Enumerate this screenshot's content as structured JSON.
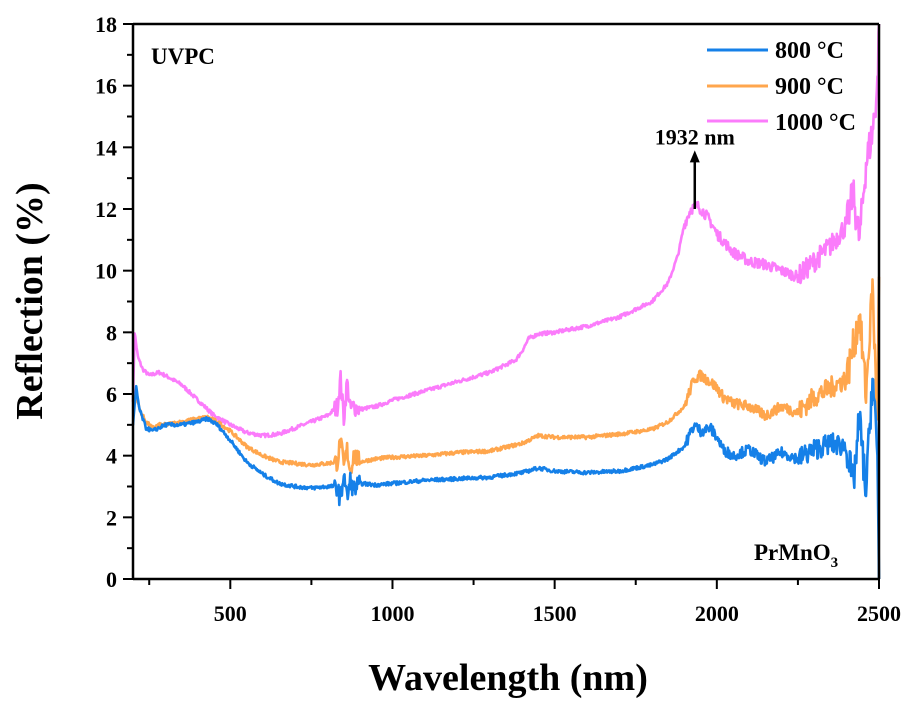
{
  "chart_data": {
    "type": "line",
    "title": "",
    "xlabel": "Wavelength (nm)",
    "ylabel": "Reflection (%)",
    "xlim": [
      200,
      2500
    ],
    "ylim": [
      0,
      18
    ],
    "xticks": [
      500,
      1000,
      1500,
      2000,
      2500
    ],
    "xminor": [
      250,
      750,
      1250,
      1750,
      2250
    ],
    "yticks": [
      0,
      2,
      4,
      6,
      8,
      10,
      12,
      14,
      16,
      18
    ],
    "yminor": [
      1,
      3,
      5,
      7,
      9,
      11,
      13,
      15,
      17
    ],
    "grid": false,
    "legend_position": "top-right",
    "annotations": [
      {
        "id": "sample-label",
        "text": "UVPC",
        "position": "top-left"
      },
      {
        "id": "compound-label",
        "text": "PrMnO",
        "subscript": "3",
        "position": "bottom-right"
      },
      {
        "id": "peak-label",
        "text": "1932 nm",
        "x": 1932,
        "arrow_from_y": 12.0,
        "arrow_to_y": 13.9
      }
    ],
    "series": [
      {
        "name": "800 °C",
        "color": "#1580e8",
        "x": [
          200,
          210,
          220,
          240,
          260,
          280,
          300,
          350,
          400,
          430,
          460,
          500,
          550,
          600,
          650,
          700,
          750,
          800,
          830,
          840,
          850,
          860,
          870,
          880,
          900,
          950,
          1000,
          1100,
          1200,
          1300,
          1400,
          1450,
          1500,
          1600,
          1700,
          1800,
          1850,
          1900,
          1930,
          1950,
          1980,
          2000,
          2020,
          2050,
          2100,
          2150,
          2200,
          2250,
          2300,
          2350,
          2400,
          2420,
          2440,
          2460,
          2480,
          2495,
          2500
        ],
        "values": [
          5.0,
          6.2,
          5.5,
          4.9,
          4.8,
          4.9,
          5.0,
          5.0,
          5.1,
          5.2,
          5.0,
          4.5,
          3.8,
          3.4,
          3.1,
          3.0,
          2.95,
          3.0,
          3.0,
          2.5,
          3.5,
          2.6,
          3.2,
          2.9,
          3.1,
          3.05,
          3.1,
          3.2,
          3.25,
          3.3,
          3.45,
          3.6,
          3.5,
          3.45,
          3.5,
          3.7,
          3.9,
          4.3,
          5.0,
          4.8,
          4.9,
          4.6,
          4.2,
          4.0,
          4.2,
          3.8,
          4.1,
          3.9,
          4.2,
          4.4,
          4.3,
          3.0,
          5.2,
          2.8,
          6.6,
          4.0,
          0.0
        ]
      },
      {
        "name": "900 °C",
        "color": "#ffa64d",
        "x": [
          200,
          210,
          220,
          240,
          260,
          280,
          300,
          350,
          400,
          430,
          460,
          500,
          550,
          600,
          650,
          700,
          750,
          800,
          830,
          840,
          850,
          860,
          870,
          880,
          900,
          950,
          1000,
          1100,
          1200,
          1300,
          1400,
          1450,
          1500,
          1600,
          1700,
          1800,
          1850,
          1900,
          1930,
          1950,
          1980,
          2000,
          2020,
          2050,
          2100,
          2150,
          2200,
          2250,
          2300,
          2350,
          2400,
          2420,
          2440,
          2460,
          2480,
          2495,
          2500
        ],
        "values": [
          5.8,
          6.0,
          5.5,
          5.1,
          4.9,
          5.0,
          5.0,
          5.1,
          5.2,
          5.25,
          5.1,
          4.8,
          4.3,
          4.0,
          3.8,
          3.75,
          3.7,
          3.75,
          3.8,
          4.5,
          3.6,
          4.2,
          3.5,
          4.0,
          3.8,
          3.9,
          3.95,
          4.0,
          4.1,
          4.15,
          4.4,
          4.65,
          4.6,
          4.6,
          4.7,
          4.85,
          5.1,
          5.6,
          6.5,
          6.6,
          6.4,
          6.2,
          5.9,
          5.7,
          5.6,
          5.3,
          5.6,
          5.4,
          5.9,
          6.2,
          6.5,
          7.5,
          8.5,
          6.0,
          9.5,
          5.0,
          9.8
        ]
      },
      {
        "name": "1000 °C",
        "color": "#fb7cfb",
        "x": [
          200,
          205,
          215,
          230,
          250,
          280,
          300,
          350,
          400,
          450,
          500,
          550,
          600,
          650,
          700,
          750,
          800,
          830,
          840,
          850,
          860,
          870,
          880,
          900,
          950,
          1000,
          1100,
          1200,
          1300,
          1380,
          1400,
          1420,
          1450,
          1500,
          1550,
          1600,
          1700,
          1800,
          1850,
          1880,
          1900,
          1920,
          1940,
          1960,
          1980,
          2000,
          2050,
          2100,
          2150,
          2200,
          2250,
          2300,
          2350,
          2400,
          2420,
          2440,
          2460,
          2480,
          2495,
          2500
        ],
        "values": [
          5.8,
          8.0,
          7.2,
          6.8,
          6.6,
          6.7,
          6.6,
          6.3,
          5.8,
          5.3,
          5.0,
          4.75,
          4.65,
          4.7,
          4.9,
          5.1,
          5.3,
          5.6,
          6.5,
          5.2,
          6.4,
          5.5,
          5.6,
          5.5,
          5.6,
          5.8,
          6.1,
          6.4,
          6.7,
          7.1,
          7.4,
          7.8,
          7.95,
          8.0,
          8.1,
          8.2,
          8.5,
          9.0,
          9.6,
          10.5,
          11.5,
          12.0,
          12.1,
          11.9,
          11.6,
          11.2,
          10.6,
          10.3,
          10.2,
          10.0,
          9.8,
          10.3,
          10.8,
          11.5,
          12.5,
          11.0,
          13.5,
          14.5,
          16.0,
          18.0
        ]
      }
    ]
  }
}
